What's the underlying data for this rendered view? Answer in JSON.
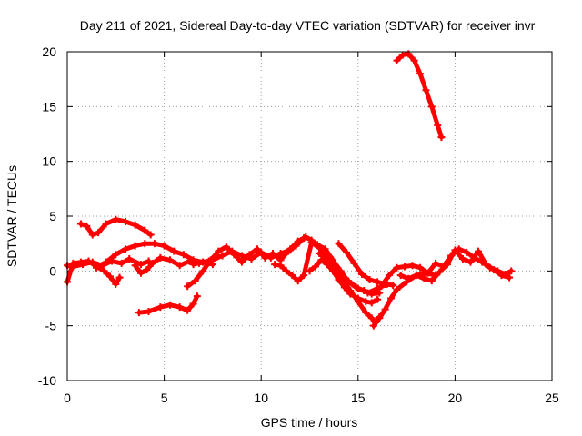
{
  "chart_data": {
    "type": "line",
    "title": "Day 211 of 2021, Sidereal Day-to-day VTEC variation (SDTVAR) for receiver invr",
    "xlabel": "GPS time / hours",
    "ylabel": "SDTVAR / TECUs",
    "xlim": [
      0,
      25
    ],
    "ylim": [
      -10,
      20
    ],
    "xticks": [
      "0",
      "5",
      "10",
      "15",
      "20",
      "25"
    ],
    "yticks": [
      "-10",
      "-5",
      "0",
      "5",
      "10",
      "15",
      "20"
    ],
    "grid": true,
    "legend": "none",
    "color": "#ff0000",
    "series": [
      {
        "name": "s1",
        "x": [
          17.0,
          17.3,
          17.6,
          17.9,
          18.2,
          18.5,
          18.8,
          19.1,
          19.3
        ],
        "y": [
          19.2,
          19.7,
          19.8,
          19.2,
          18.0,
          16.5,
          15.0,
          13.3,
          12.2
        ]
      },
      {
        "name": "s2",
        "x": [
          0.7,
          1.0,
          1.3,
          1.6,
          2.0,
          2.5,
          3.0,
          3.5,
          4.0,
          4.3
        ],
        "y": [
          4.3,
          4.1,
          3.3,
          3.5,
          4.3,
          4.7,
          4.5,
          4.2,
          3.7,
          3.3
        ]
      },
      {
        "name": "s3",
        "x": [
          3.7,
          4.2,
          4.8,
          5.3,
          5.8,
          6.2,
          6.5,
          6.7
        ],
        "y": [
          -3.8,
          -3.7,
          -3.3,
          -3.1,
          -3.3,
          -3.6,
          -3.0,
          -2.3
        ]
      },
      {
        "name": "s4",
        "x": [
          0.0,
          0.3,
          0.7,
          1.1,
          1.5,
          1.9,
          2.2,
          2.5,
          2.7
        ],
        "y": [
          -1.0,
          0.7,
          0.8,
          0.9,
          0.4,
          0.0,
          -0.5,
          -1.2,
          -0.6
        ]
      },
      {
        "name": "s5",
        "x": [
          0.0,
          0.3,
          0.8,
          1.3,
          1.8,
          2.3,
          2.8,
          3.2,
          3.8,
          4.2
        ],
        "y": [
          0.5,
          0.4,
          0.6,
          0.8,
          0.5,
          0.9,
          0.7,
          1.1,
          0.6,
          0.9
        ]
      },
      {
        "name": "s6",
        "x": [
          1.5,
          2.0,
          2.5,
          3.0,
          3.5,
          4.0,
          4.5,
          5.0,
          5.5,
          6.0,
          6.5,
          7.0,
          7.5
        ],
        "y": [
          0.3,
          0.8,
          1.5,
          2.0,
          2.3,
          2.5,
          2.5,
          2.3,
          1.8,
          1.5,
          1.0,
          0.8,
          0.6
        ]
      },
      {
        "name": "s7",
        "x": [
          3.5,
          3.8,
          4.1,
          4.4,
          4.8,
          5.3,
          5.8,
          6.3,
          6.8,
          7.3
        ],
        "y": [
          0.5,
          -0.2,
          0.1,
          0.7,
          1.2,
          1.0,
          0.5,
          0.9,
          0.7,
          0.9
        ]
      },
      {
        "name": "s8",
        "x": [
          6.2,
          6.6,
          7.0,
          7.4,
          7.8,
          8.2,
          8.6,
          9.0,
          9.4,
          9.8,
          10.2,
          10.6,
          11.0,
          11.4,
          11.8,
          12.2
        ],
        "y": [
          -1.4,
          -0.9,
          0.0,
          1.0,
          1.8,
          2.2,
          1.5,
          0.8,
          1.5,
          2.0,
          1.2,
          1.6,
          1.0,
          1.8,
          2.3,
          3.0
        ]
      },
      {
        "name": "s9",
        "x": [
          6.5,
          7.0,
          7.5,
          8.0,
          8.5,
          9.0,
          9.5,
          10.0,
          10.5,
          11.0,
          11.5
        ],
        "y": [
          0.6,
          0.8,
          1.0,
          1.4,
          1.8,
          1.4,
          1.1,
          1.7,
          1.2,
          1.6,
          1.9
        ]
      },
      {
        "name": "s10",
        "x": [
          10.7,
          11.0,
          11.3,
          11.6,
          11.9,
          12.2,
          12.6,
          13.0,
          13.5,
          14.0,
          14.5,
          15.0,
          15.5,
          16.0,
          16.5
        ],
        "y": [
          0.6,
          0.5,
          0.0,
          -0.4,
          -0.9,
          -0.4,
          2.6,
          2.1,
          1.2,
          0.0,
          -0.9,
          -1.6,
          -2.0,
          -1.6,
          -1.2
        ]
      },
      {
        "name": "s11",
        "x": [
          11.5,
          11.9,
          12.3,
          12.6,
          12.9,
          13.3,
          13.7,
          14.1,
          14.5,
          14.9,
          15.3,
          15.7,
          16.1
        ],
        "y": [
          2.0,
          2.7,
          3.1,
          2.8,
          2.4,
          2.0,
          1.0,
          0.0,
          -1.0,
          -1.5,
          -1.8,
          -2.1,
          -2.0
        ]
      },
      {
        "name": "s12",
        "x": [
          12.5,
          12.8,
          13.1,
          13.4,
          13.7,
          14.0,
          14.3,
          14.6,
          15.0,
          15.4,
          15.7,
          16.0
        ],
        "y": [
          0.0,
          0.4,
          1.0,
          0.6,
          0.0,
          -0.8,
          -1.5,
          -2.1,
          -2.5,
          -2.8,
          -2.9,
          -2.6
        ]
      },
      {
        "name": "s13",
        "x": [
          13.0,
          13.4,
          13.8,
          14.2,
          14.6,
          15.0,
          15.4,
          15.7,
          15.9,
          16.1
        ],
        "y": [
          1.6,
          1.0,
          0.1,
          -0.8,
          -1.8,
          -2.8,
          -3.8,
          -4.3,
          -4.7,
          -4.2
        ]
      },
      {
        "name": "s14",
        "x": [
          14.0,
          14.4,
          14.8,
          15.2,
          15.6,
          16.0,
          16.4,
          16.8
        ],
        "y": [
          2.5,
          1.7,
          0.7,
          -0.3,
          -0.8,
          -1.0,
          -1.2,
          -1.3
        ]
      },
      {
        "name": "s15",
        "x": [
          15.8,
          16.1,
          16.4,
          16.7,
          17.0,
          17.5,
          18.0,
          18.5,
          19.0
        ],
        "y": [
          -5.0,
          -4.3,
          -3.5,
          -2.5,
          -1.7,
          -1.0,
          -0.4,
          -0.2,
          -0.4
        ]
      },
      {
        "name": "s16",
        "x": [
          16.2,
          16.6,
          17.0,
          17.4,
          17.8,
          18.2,
          18.6,
          19.0,
          19.4,
          19.8,
          20.2,
          20.6,
          21.0,
          21.4,
          21.8,
          22.2,
          22.6,
          22.9
        ],
        "y": [
          -1.4,
          -0.4,
          0.3,
          0.4,
          0.5,
          0.3,
          -0.2,
          0.7,
          0.4,
          1.4,
          2.0,
          1.7,
          1.2,
          0.8,
          0.3,
          0.0,
          -0.3,
          0.0
        ]
      },
      {
        "name": "s17",
        "x": [
          17.2,
          17.6,
          18.0,
          18.4,
          18.8,
          19.2,
          19.6,
          20.0,
          20.4,
          20.8,
          21.2,
          21.6,
          22.0,
          22.4,
          22.8
        ],
        "y": [
          -0.4,
          -0.7,
          -0.4,
          -0.7,
          -0.9,
          -0.1,
          0.6,
          1.9,
          1.1,
          0.8,
          1.8,
          0.6,
          0.1,
          -0.4,
          -0.6
        ]
      }
    ]
  }
}
